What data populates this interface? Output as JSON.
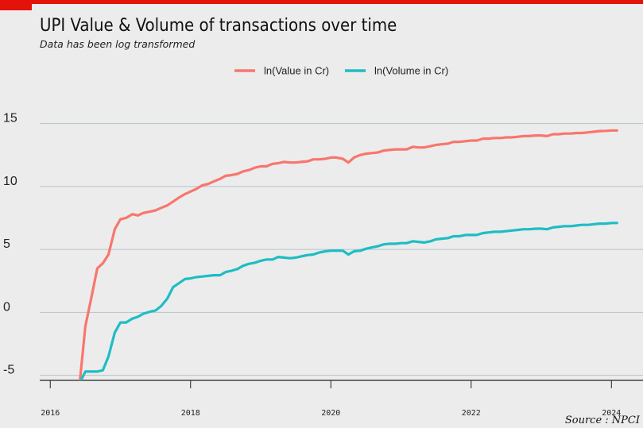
{
  "title": "UPI Value & Volume of transactions over time",
  "subtitle": "Data has been log transformed",
  "source": "Source : NPCI",
  "colors": {
    "accent": "#e3120b",
    "value_line": "#f8766d",
    "volume_line": "#1ebdc4"
  },
  "chart_data": {
    "type": "line",
    "title": "UPI Value & Volume of transactions over time",
    "subtitle": "Data has been log transformed",
    "xlabel": "",
    "ylabel": "",
    "xlim": [
      2015.85,
      2024.45
    ],
    "ylim": [
      -5.4,
      18.0
    ],
    "x_ticks": [
      "2016",
      "2018",
      "2020",
      "2022",
      "2024"
    ],
    "y_ticks": [
      "15",
      "10",
      "5",
      "0",
      "-5"
    ],
    "grid": "horizontal",
    "legend_position": "top",
    "series": [
      {
        "name": "ln(Value in Cr)",
        "color": "#f8766d",
        "points": [
          [
            2016.25,
            -5.6
          ],
          [
            2016.33,
            -5.6
          ],
          [
            2016.42,
            -5.6
          ],
          [
            2016.5,
            -1.1
          ],
          [
            2016.58,
            1.0
          ],
          [
            2016.67,
            3.5
          ],
          [
            2016.75,
            3.9
          ],
          [
            2016.83,
            4.6
          ],
          [
            2016.92,
            6.6
          ],
          [
            2017.0,
            7.4
          ],
          [
            2017.08,
            7.5
          ],
          [
            2017.17,
            7.8
          ],
          [
            2017.25,
            7.7
          ],
          [
            2017.33,
            7.9
          ],
          [
            2017.42,
            8.0
          ],
          [
            2017.5,
            8.1
          ],
          [
            2017.58,
            8.3
          ],
          [
            2017.67,
            8.5
          ],
          [
            2017.75,
            8.8
          ],
          [
            2017.83,
            9.1
          ],
          [
            2017.92,
            9.4
          ],
          [
            2018.0,
            9.6
          ],
          [
            2018.08,
            9.8
          ],
          [
            2018.17,
            10.1
          ],
          [
            2018.25,
            10.2
          ],
          [
            2018.33,
            10.4
          ],
          [
            2018.42,
            10.6
          ],
          [
            2018.5,
            10.85
          ],
          [
            2018.58,
            10.9
          ],
          [
            2018.67,
            11.0
          ],
          [
            2018.75,
            11.2
          ],
          [
            2018.83,
            11.3
          ],
          [
            2018.92,
            11.5
          ],
          [
            2019.0,
            11.6
          ],
          [
            2019.08,
            11.6
          ],
          [
            2019.17,
            11.8
          ],
          [
            2019.25,
            11.85
          ],
          [
            2019.33,
            11.95
          ],
          [
            2019.42,
            11.9
          ],
          [
            2019.5,
            11.9
          ],
          [
            2019.58,
            11.95
          ],
          [
            2019.67,
            12.0
          ],
          [
            2019.75,
            12.15
          ],
          [
            2019.83,
            12.15
          ],
          [
            2019.92,
            12.2
          ],
          [
            2020.0,
            12.3
          ],
          [
            2020.08,
            12.3
          ],
          [
            2020.17,
            12.2
          ],
          [
            2020.25,
            11.9
          ],
          [
            2020.33,
            12.3
          ],
          [
            2020.42,
            12.5
          ],
          [
            2020.5,
            12.6
          ],
          [
            2020.58,
            12.65
          ],
          [
            2020.67,
            12.7
          ],
          [
            2020.75,
            12.85
          ],
          [
            2020.83,
            12.9
          ],
          [
            2020.92,
            12.95
          ],
          [
            2021.0,
            12.95
          ],
          [
            2021.08,
            12.95
          ],
          [
            2021.17,
            13.15
          ],
          [
            2021.25,
            13.1
          ],
          [
            2021.33,
            13.1
          ],
          [
            2021.42,
            13.2
          ],
          [
            2021.5,
            13.3
          ],
          [
            2021.58,
            13.35
          ],
          [
            2021.67,
            13.4
          ],
          [
            2021.75,
            13.55
          ],
          [
            2021.83,
            13.55
          ],
          [
            2021.92,
            13.6
          ],
          [
            2022.0,
            13.65
          ],
          [
            2022.08,
            13.65
          ],
          [
            2022.17,
            13.8
          ],
          [
            2022.25,
            13.8
          ],
          [
            2022.33,
            13.85
          ],
          [
            2022.42,
            13.85
          ],
          [
            2022.5,
            13.9
          ],
          [
            2022.58,
            13.9
          ],
          [
            2022.67,
            13.95
          ],
          [
            2022.75,
            14.0
          ],
          [
            2022.83,
            14.0
          ],
          [
            2022.92,
            14.05
          ],
          [
            2023.0,
            14.05
          ],
          [
            2023.08,
            14.0
          ],
          [
            2023.17,
            14.15
          ],
          [
            2023.25,
            14.15
          ],
          [
            2023.33,
            14.2
          ],
          [
            2023.42,
            14.2
          ],
          [
            2023.5,
            14.25
          ],
          [
            2023.58,
            14.25
          ],
          [
            2023.67,
            14.3
          ],
          [
            2023.75,
            14.35
          ],
          [
            2023.83,
            14.4
          ],
          [
            2023.92,
            14.42
          ],
          [
            2024.0,
            14.45
          ],
          [
            2024.08,
            14.45
          ]
        ]
      },
      {
        "name": "ln(Volume in Cr)",
        "color": "#1ebdc4",
        "points": [
          [
            2016.25,
            -5.6
          ],
          [
            2016.33,
            -5.6
          ],
          [
            2016.42,
            -5.6
          ],
          [
            2016.5,
            -4.7
          ],
          [
            2016.58,
            -4.7
          ],
          [
            2016.67,
            -4.7
          ],
          [
            2016.75,
            -4.6
          ],
          [
            2016.83,
            -3.5
          ],
          [
            2016.92,
            -1.6
          ],
          [
            2017.0,
            -0.8
          ],
          [
            2017.08,
            -0.8
          ],
          [
            2017.17,
            -0.5
          ],
          [
            2017.25,
            -0.35
          ],
          [
            2017.33,
            -0.1
          ],
          [
            2017.42,
            0.05
          ],
          [
            2017.5,
            0.15
          ],
          [
            2017.58,
            0.5
          ],
          [
            2017.67,
            1.1
          ],
          [
            2017.75,
            2.0
          ],
          [
            2017.83,
            2.3
          ],
          [
            2017.92,
            2.65
          ],
          [
            2018.0,
            2.7
          ],
          [
            2018.08,
            2.8
          ],
          [
            2018.17,
            2.85
          ],
          [
            2018.25,
            2.9
          ],
          [
            2018.33,
            2.95
          ],
          [
            2018.42,
            2.95
          ],
          [
            2018.5,
            3.2
          ],
          [
            2018.58,
            3.3
          ],
          [
            2018.67,
            3.45
          ],
          [
            2018.75,
            3.7
          ],
          [
            2018.83,
            3.85
          ],
          [
            2018.92,
            3.95
          ],
          [
            2019.0,
            4.1
          ],
          [
            2019.08,
            4.2
          ],
          [
            2019.17,
            4.2
          ],
          [
            2019.25,
            4.4
          ],
          [
            2019.33,
            4.35
          ],
          [
            2019.42,
            4.3
          ],
          [
            2019.5,
            4.35
          ],
          [
            2019.58,
            4.45
          ],
          [
            2019.67,
            4.55
          ],
          [
            2019.75,
            4.6
          ],
          [
            2019.83,
            4.75
          ],
          [
            2019.92,
            4.85
          ],
          [
            2020.0,
            4.9
          ],
          [
            2020.08,
            4.9
          ],
          [
            2020.17,
            4.9
          ],
          [
            2020.25,
            4.6
          ],
          [
            2020.33,
            4.85
          ],
          [
            2020.42,
            4.9
          ],
          [
            2020.5,
            5.05
          ],
          [
            2020.58,
            5.15
          ],
          [
            2020.67,
            5.25
          ],
          [
            2020.75,
            5.4
          ],
          [
            2020.83,
            5.45
          ],
          [
            2020.92,
            5.45
          ],
          [
            2021.0,
            5.5
          ],
          [
            2021.08,
            5.5
          ],
          [
            2021.17,
            5.65
          ],
          [
            2021.25,
            5.6
          ],
          [
            2021.33,
            5.55
          ],
          [
            2021.42,
            5.65
          ],
          [
            2021.5,
            5.8
          ],
          [
            2021.58,
            5.85
          ],
          [
            2021.67,
            5.9
          ],
          [
            2021.75,
            6.05
          ],
          [
            2021.83,
            6.05
          ],
          [
            2021.92,
            6.15
          ],
          [
            2022.0,
            6.15
          ],
          [
            2022.08,
            6.15
          ],
          [
            2022.17,
            6.3
          ],
          [
            2022.25,
            6.35
          ],
          [
            2022.33,
            6.4
          ],
          [
            2022.42,
            6.4
          ],
          [
            2022.5,
            6.45
          ],
          [
            2022.58,
            6.5
          ],
          [
            2022.67,
            6.55
          ],
          [
            2022.75,
            6.6
          ],
          [
            2022.83,
            6.6
          ],
          [
            2022.92,
            6.65
          ],
          [
            2023.0,
            6.65
          ],
          [
            2023.08,
            6.6
          ],
          [
            2023.17,
            6.75
          ],
          [
            2023.25,
            6.8
          ],
          [
            2023.33,
            6.85
          ],
          [
            2023.42,
            6.85
          ],
          [
            2023.5,
            6.9
          ],
          [
            2023.58,
            6.95
          ],
          [
            2023.67,
            6.95
          ],
          [
            2023.75,
            7.0
          ],
          [
            2023.83,
            7.05
          ],
          [
            2023.92,
            7.05
          ],
          [
            2024.0,
            7.1
          ],
          [
            2024.08,
            7.1
          ]
        ]
      }
    ]
  }
}
